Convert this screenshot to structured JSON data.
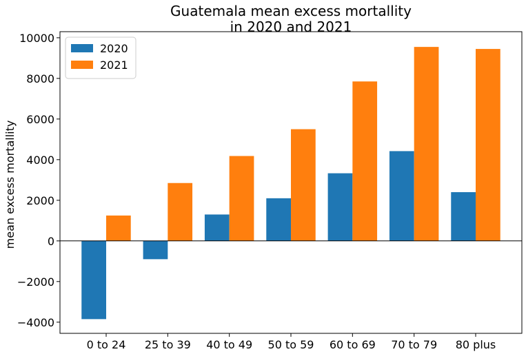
{
  "chart_data": {
    "type": "bar",
    "title_lines": [
      "Guatemala mean excess mortallity",
      "in 2020 and 2021"
    ],
    "xlabel": "",
    "ylabel": "mean excess mortallity",
    "categories": [
      "0 to 24",
      "25 to 39",
      "40 to 49",
      "50 to 59",
      "60 to 69",
      "70 to 79",
      "80 plus"
    ],
    "series": [
      {
        "name": "2020",
        "color": "#1f77b4",
        "values": [
          -3850,
          -900,
          1300,
          2100,
          3330,
          4420,
          2400
        ]
      },
      {
        "name": "2021",
        "color": "#ff7f0e",
        "values": [
          1250,
          2850,
          4180,
          5500,
          7850,
          9550,
          9450
        ]
      }
    ],
    "ylim": [
      -4550,
      10300
    ],
    "yticks": [
      -4000,
      -2000,
      0,
      2000,
      4000,
      6000,
      8000,
      10000
    ],
    "ytick_labels": [
      "−4000",
      "−2000",
      "0",
      "2000",
      "4000",
      "6000",
      "8000",
      "10000"
    ],
    "zero_line": true,
    "grid": false,
    "legend_position": "top-left"
  }
}
